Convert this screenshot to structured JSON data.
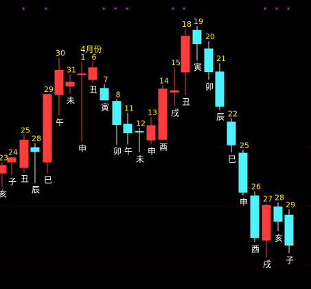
{
  "colors": {
    "background": "#000000",
    "up": "#FF3B3B",
    "down": "#4CF2FF",
    "wick": "#E8E8E8",
    "number_label": "#FFE800",
    "branch_label": "#FFFFFF",
    "month_label": "#FFE800",
    "gridline": "#3A0010",
    "top_marker": "#D000D0"
  },
  "chart_data": {
    "type": "candlestick",
    "month_label": "4月份",
    "ylim": [
      0,
      100
    ],
    "candles": [
      {
        "num": "23",
        "branch": "亥",
        "open": 38.0,
        "close": 41.0,
        "high": 42.0,
        "low": 33.0
      },
      {
        "num": "24",
        "branch": "子",
        "open": 42.0,
        "close": 43.8,
        "high": 44.0,
        "low": 37.5
      },
      {
        "num": "25",
        "branch": "丑",
        "open": 40.0,
        "close": 50.2,
        "high": 52.0,
        "low": 38.5
      },
      {
        "num": "28",
        "branch": "辰",
        "open": 47.5,
        "close": 45.8,
        "high": 49.0,
        "low": 34.5
      },
      {
        "num": "29",
        "branch": "巳",
        "open": 42.0,
        "close": 66.8,
        "high": 66.8,
        "low": 38.0
      },
      {
        "num": "30",
        "branch": "午",
        "open": 66.5,
        "close": 75.6,
        "high": 80.0,
        "low": 59.0
      },
      {
        "num": "31",
        "branch": "未",
        "open": 69.6,
        "close": 71.3,
        "high": 74.0,
        "low": 67.0
      },
      {
        "num": "1",
        "branch": "申",
        "open": 74.0,
        "close": 74.3,
        "high": 78.5,
        "low": 49.5
      },
      {
        "num": "6",
        "branch": "丑",
        "open": 72.0,
        "close": 76.5,
        "high": 78.5,
        "low": 71.0
      },
      {
        "num": "7",
        "branch": "寅",
        "open": 69.0,
        "close": 64.5,
        "high": 70.5,
        "low": 64.5
      },
      {
        "num": "8",
        "branch": "卯",
        "open": 64.3,
        "close": 55.6,
        "high": 65.0,
        "low": 48.5
      },
      {
        "num": "11",
        "branch": "午",
        "open": 56.0,
        "close": 52.6,
        "high": 60.0,
        "low": 48.5
      },
      {
        "num": "12",
        "branch": "未",
        "open": 53.4,
        "close": 53.0,
        "high": 54.5,
        "low": 45.6
      },
      {
        "num": "13",
        "branch": "申",
        "open": 50.0,
        "close": 55.5,
        "high": 58.5,
        "low": 48.5
      },
      {
        "num": "14",
        "branch": "酉",
        "open": 50.2,
        "close": 68.8,
        "high": 70.0,
        "low": 50.0
      },
      {
        "num": "15",
        "branch": "戌",
        "open": 67.4,
        "close": 68.2,
        "high": 76.5,
        "low": 62.5
      },
      {
        "num": "18",
        "branch": "丑",
        "open": 74.7,
        "close": 88.0,
        "high": 90.5,
        "low": 66.5
      },
      {
        "num": "19",
        "branch": "寅",
        "open": 90.1,
        "close": 85.0,
        "high": 91.5,
        "low": 79.0
      },
      {
        "num": "20",
        "branch": "卯",
        "open": 83.4,
        "close": 74.8,
        "high": 86.0,
        "low": 72.0
      },
      {
        "num": "21",
        "branch": "辰",
        "open": 75.0,
        "close": 62.2,
        "high": 78.0,
        "low": 61.0
      },
      {
        "num": "22",
        "branch": "巳",
        "open": 56.8,
        "close": 48.2,
        "high": 58.0,
        "low": 45.6
      },
      {
        "num": "25",
        "branch": "申",
        "open": 45.5,
        "close": 31.0,
        "high": 46.5,
        "low": 30.0
      },
      {
        "num": "26",
        "branch": "酉",
        "open": 30.0,
        "close": 14.5,
        "high": 31.5,
        "low": 13.0
      },
      {
        "num": "27",
        "branch": "戌",
        "open": 13.6,
        "close": 26.5,
        "high": 27.0,
        "low": 7.5
      },
      {
        "num": "28",
        "branch": "亥",
        "open": 26.0,
        "close": 20.5,
        "high": 27.5,
        "low": 17.0
      },
      {
        "num": "29",
        "branch": "子",
        "open": 23.0,
        "close": 11.8,
        "high": 25.0,
        "low": 9.0
      }
    ]
  }
}
